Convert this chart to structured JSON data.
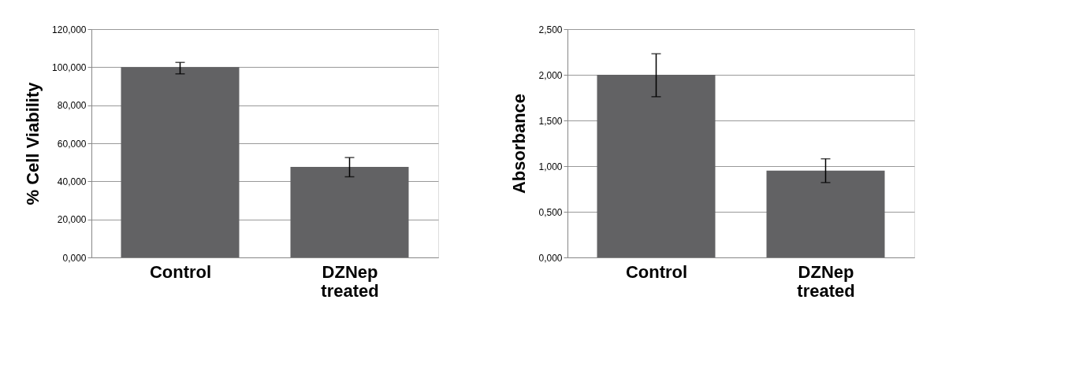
{
  "chart_data": [
    {
      "type": "bar",
      "ylabel": "% Cell Viability",
      "categories": [
        "Control",
        "DZNep treated"
      ],
      "values": [
        100,
        47.6
      ],
      "color": "#626264",
      "errors": [
        [
          96.5,
          102.5
        ],
        [
          42.4,
          52.5
        ]
      ],
      "ylim": [
        0,
        120
      ],
      "yticks": [
        {
          "value": 0,
          "label": "0,000"
        },
        {
          "value": 20,
          "label": "20,000"
        },
        {
          "value": 40,
          "label": "40,000"
        },
        {
          "value": 60,
          "label": "60,000"
        },
        {
          "value": 80,
          "label": "80,000"
        },
        {
          "value": 100,
          "label": "100,000"
        },
        {
          "value": 120,
          "label": "120,000"
        }
      ],
      "grid": "y"
    },
    {
      "type": "bar",
      "ylabel": "Absorbance",
      "categories": [
        "Control",
        "DZNep treated"
      ],
      "values": [
        2.0,
        0.95
      ],
      "color": "#626264",
      "errors": [
        [
          1.76,
          2.23
        ],
        [
          0.82,
          1.08
        ]
      ],
      "ylim": [
        0,
        2.5
      ],
      "yticks": [
        {
          "value": 0,
          "label": "0,000"
        },
        {
          "value": 0.5,
          "label": "0,500"
        },
        {
          "value": 1,
          "label": "1,000"
        },
        {
          "value": 1.5,
          "label": "1,500"
        },
        {
          "value": 2,
          "label": "2,000"
        },
        {
          "value": 2.5,
          "label": "2,500"
        }
      ],
      "grid": "y"
    }
  ]
}
